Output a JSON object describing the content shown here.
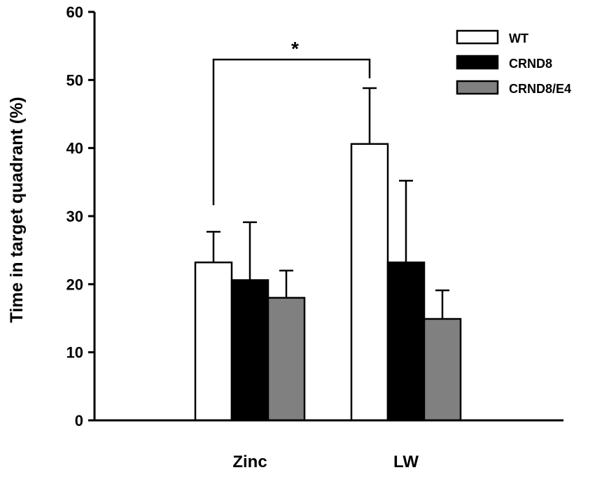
{
  "chart_data": {
    "type": "bar",
    "title": "",
    "xlabel": "",
    "ylabel": "Time in target quadrant (%)",
    "ylim": [
      0,
      60
    ],
    "yticks": [
      0,
      10,
      20,
      30,
      40,
      50,
      60
    ],
    "categories": [
      "Zinc",
      "LW"
    ],
    "series": [
      {
        "name": "WT",
        "color": "#ffffff",
        "values": [
          23.2,
          40.6
        ],
        "errors": [
          4.5,
          8.2
        ]
      },
      {
        "name": "CRND8",
        "color": "#000000",
        "values": [
          20.6,
          23.2
        ],
        "errors": [
          8.5,
          12.0
        ]
      },
      {
        "name": "CRND8/E4",
        "color": "#808080",
        "values": [
          18.0,
          14.9
        ],
        "errors": [
          4.0,
          4.2
        ]
      }
    ],
    "significance": {
      "from_category": 0,
      "from_series": 0,
      "to_category": 1,
      "to_series": 0,
      "bracket_value": 53,
      "label": "*"
    },
    "legend": {
      "position": "top-right"
    }
  }
}
